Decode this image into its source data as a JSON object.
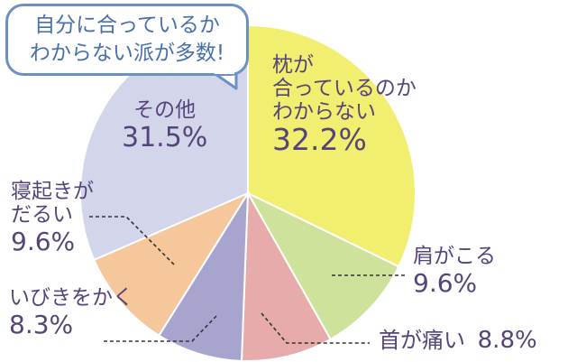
{
  "callout": {
    "line1": "自分に合っているか",
    "line2": "わからない派が多数!"
  },
  "colors": {
    "text": "#55447a",
    "callout_border": "#6b91c3",
    "callout_text": "#4770aa",
    "leader_line": "#333333"
  },
  "chart_data": {
    "type": "pie",
    "title": "",
    "start_angle_deg": 0,
    "direction": "clockwise",
    "slices": [
      {
        "label_lines": [
          "枕が",
          "合っているのか",
          "わからない"
        ],
        "value": 32.2,
        "value_text": "32.2%",
        "color": "#f2ee70"
      },
      {
        "label_lines": [
          "肩がこる"
        ],
        "value": 9.6,
        "value_text": "9.6%",
        "color": "#cfe29c"
      },
      {
        "label_lines": [
          "首が痛い"
        ],
        "value": 8.8,
        "value_text": "8.8%",
        "color": "#e7abab"
      },
      {
        "label_lines": [
          "いびきをかく"
        ],
        "value": 8.3,
        "value_text": "8.3%",
        "color": "#a7a5cd"
      },
      {
        "label_lines": [
          "寝起きが",
          "だるい"
        ],
        "value": 9.6,
        "value_text": "9.6%",
        "color": "#f6c79a"
      },
      {
        "label_lines": [
          "その他"
        ],
        "value": 31.5,
        "value_text": "31.5%",
        "color": "#d3d6ea"
      }
    ]
  }
}
